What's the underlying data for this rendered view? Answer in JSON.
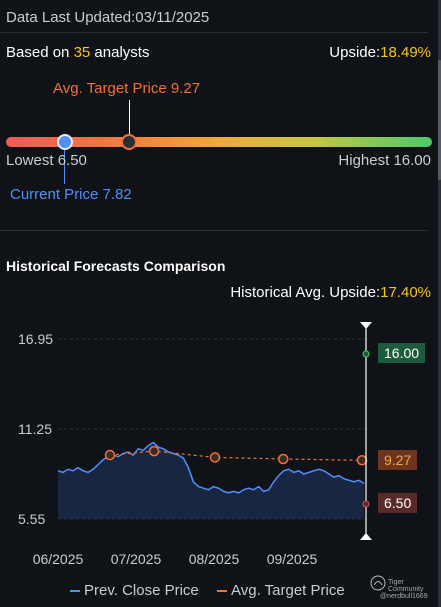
{
  "header": {
    "last_updated_label": "Data Last Updated:",
    "last_updated_value": "03/11/2025"
  },
  "consensus": {
    "based_on_prefix": "Based on ",
    "analyst_count": "35",
    "based_on_suffix": " analysts",
    "upside_label": "Upside:",
    "upside_value": "18.49%",
    "avg_target_label": "Avg. Target Price 9.27",
    "lowest_label": "Lowest 6.50",
    "highest_label": "Highest 16.00",
    "current_price_label": "Current Price 7.82",
    "colors": {
      "low": "#f25a5a",
      "mid": "#f0a93b",
      "high": "#4cc96a",
      "marker_current": "#4f8fff",
      "marker_target": "#2a2e35"
    }
  },
  "historical": {
    "title": "Historical Forecasts Comparison",
    "avg_upside_label": "Historical Avg. Upside:",
    "avg_upside_value": "17.40%",
    "high_label": "16.00",
    "target_label": "9.27",
    "low_label": "6.50",
    "legend": {
      "prev_close": "Prev. Close Price",
      "avg_target": "Avg. Target Price"
    },
    "colors": {
      "prev_close": "#4f8fff",
      "avg_target": "#f0723a",
      "high_box": "#1e5a3c",
      "target_box": "#6b3520",
      "low_box": "#5a2a2a"
    }
  },
  "chart_data": {
    "type": "line",
    "y_ticks": [
      "16.95",
      "11.25",
      "5.55"
    ],
    "x_ticks": [
      "06/2025",
      "07/2025",
      "08/2025",
      "09/2025"
    ],
    "ylim": [
      5.55,
      16.95
    ],
    "series": [
      {
        "name": "Prev. Close Price",
        "values": [
          8.6,
          8.5,
          8.7,
          8.6,
          8.8,
          8.6,
          8.5,
          8.7,
          9.0,
          9.3,
          9.5,
          9.6,
          9.5,
          9.7,
          9.8,
          9.6,
          10.0,
          9.9,
          10.2,
          10.4,
          10.1,
          10.0,
          9.8,
          9.7,
          9.6,
          9.4,
          8.8,
          7.9,
          7.6,
          7.5,
          7.4,
          7.6,
          7.5,
          7.3,
          7.2,
          7.3,
          7.2,
          7.4,
          7.5,
          7.4,
          7.6,
          7.3,
          7.4,
          7.9,
          8.3,
          8.6,
          8.7,
          8.5,
          8.6,
          8.4,
          8.5,
          8.6,
          8.7,
          8.6,
          8.4,
          8.2,
          8.3,
          8.1,
          8.0,
          7.9,
          8.0,
          7.8
        ]
      },
      {
        "name": "Avg. Target Price",
        "points": [
          [
            0.0,
            9.6
          ],
          [
            0.42,
            9.85
          ],
          [
            1.0,
            9.45
          ],
          [
            1.65,
            9.35
          ],
          [
            2.4,
            9.27
          ]
        ]
      }
    ],
    "markers": {
      "high": 16.0,
      "target": 9.27,
      "low": 6.5
    }
  }
}
